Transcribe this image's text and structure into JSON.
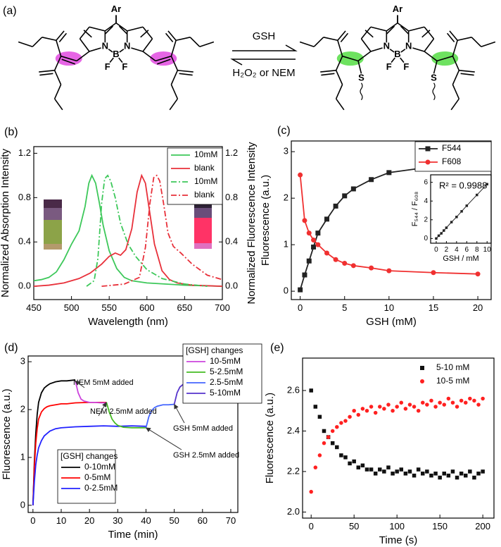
{
  "scheme": {
    "panel_label": "(a)",
    "forward": "GSH",
    "reverse": "H₂O₂ or NEM",
    "left_atoms": [
      "Ar",
      "N",
      "B",
      "N",
      "F",
      "F"
    ],
    "right_atoms": [
      "Ar",
      "N",
      "B",
      "N",
      "F",
      "F",
      "S",
      "S"
    ]
  },
  "chart_data": [
    {
      "type": "line",
      "panel_label": "(b)",
      "x_label": "Wavelength (nm)",
      "y_label": "Normalized Absorption Intensity",
      "y2_label": "Normalized Fluorescence Intensity",
      "xlim": [
        450,
        700
      ],
      "xticks": [
        450,
        500,
        550,
        600,
        650,
        700
      ],
      "ylim": [
        -0.12,
        1.26
      ],
      "yticks": [
        {
          "value": 0,
          "label": "0.0"
        },
        {
          "value": 0.4,
          "label": "0.4"
        },
        {
          "value": 0.8,
          "label": "0.8"
        },
        {
          "value": 1.2,
          "label": "1.2"
        }
      ],
      "y2lim": [
        -0.12,
        1.26
      ],
      "y2ticks": [
        {
          "value": 0,
          "label": "0.0"
        },
        {
          "value": 0.4,
          "label": "0.4"
        },
        {
          "value": 0.8,
          "label": "0.8"
        },
        {
          "value": 1.2,
          "label": "1.2"
        }
      ],
      "legend": "upper right",
      "series": [
        {
          "name": "10mM",
          "color": "#3dc85a",
          "style": "solid",
          "x": [
            450,
            460,
            470,
            480,
            490,
            500,
            510,
            518,
            523,
            527,
            532,
            537,
            542,
            550,
            560,
            570,
            580,
            600,
            650,
            700
          ],
          "values": [
            0.05,
            0.06,
            0.08,
            0.13,
            0.24,
            0.38,
            0.5,
            0.72,
            0.93,
            1.0,
            0.93,
            0.75,
            0.55,
            0.32,
            0.16,
            0.08,
            0.05,
            0.03,
            0.01,
            0.0
          ]
        },
        {
          "name": "blank",
          "color": "#e8303a",
          "style": "solid",
          "x": [
            450,
            470,
            490,
            510,
            525,
            540,
            550,
            558,
            565,
            572,
            580,
            587,
            593,
            598,
            603,
            610,
            620,
            630,
            640,
            660,
            700
          ],
          "values": [
            0.0,
            0.01,
            0.03,
            0.07,
            0.12,
            0.2,
            0.27,
            0.3,
            0.28,
            0.33,
            0.52,
            0.85,
            1.0,
            0.93,
            0.7,
            0.38,
            0.14,
            0.06,
            0.03,
            0.01,
            0.0
          ]
        },
        {
          "name": "10mM",
          "color": "#3dc85a",
          "style": "dashdot",
          "axis": "y2",
          "x": [
            520,
            530,
            535,
            540,
            544,
            548,
            552,
            558,
            565,
            575,
            585,
            600,
            620,
            650,
            680
          ],
          "values": [
            0.0,
            0.05,
            0.25,
            0.75,
            0.97,
            1.0,
            0.95,
            0.8,
            0.57,
            0.38,
            0.27,
            0.15,
            0.07,
            0.02,
            0.0
          ]
        },
        {
          "name": "blank",
          "color": "#e8303a",
          "style": "dashdot",
          "axis": "y2",
          "x": [
            540,
            570,
            590,
            598,
            604,
            609,
            613,
            617,
            622,
            628,
            635,
            645,
            660,
            680,
            700
          ],
          "values": [
            0.0,
            0.02,
            0.08,
            0.35,
            0.75,
            0.98,
            1.0,
            0.95,
            0.75,
            0.48,
            0.36,
            0.3,
            0.2,
            0.1,
            0.06
          ]
        }
      ]
    },
    {
      "type": "line",
      "panel_label": "(c)",
      "x_label": "GSH (mM)",
      "y_label": "Fluorescence  (a.u.)",
      "xlim": [
        -1,
        21.5
      ],
      "xticks": [
        0,
        5,
        10,
        15,
        20
      ],
      "ylim": [
        -0.18,
        3.23
      ],
      "yticks": [
        0,
        1,
        2,
        3
      ],
      "legend": "upper right",
      "x": [
        0,
        0.5,
        1,
        1.5,
        2,
        3,
        4,
        5,
        6,
        8,
        10,
        15,
        20
      ],
      "series": [
        {
          "name": "F544",
          "color": "#222222",
          "marker": "square",
          "values": [
            0.03,
            0.35,
            0.65,
            0.95,
            1.25,
            1.55,
            1.83,
            2.05,
            2.2,
            2.4,
            2.55,
            2.68,
            2.76
          ]
        },
        {
          "name": "F608",
          "color": "#f03030",
          "marker": "circle",
          "values": [
            2.5,
            1.52,
            1.25,
            1.1,
            1.0,
            0.82,
            0.68,
            0.6,
            0.55,
            0.5,
            0.44,
            0.4,
            0.37
          ]
        }
      ]
    },
    {
      "type": "line",
      "x_label": "GSH / mM",
      "y_label": "F₅₄₄ / F₆₀₈",
      "annotation": "R² = 0.9988",
      "xlim": [
        -1.1,
        10.8
      ],
      "xticks": [
        0,
        2,
        4,
        6,
        8,
        10
      ],
      "ylim": [
        -0.5,
        6.8
      ],
      "yticks": [
        0,
        2,
        4,
        6
      ],
      "x": [
        0,
        0.5,
        1,
        1.5,
        2,
        3,
        4,
        5,
        6,
        8,
        10
      ],
      "series": [
        {
          "color": "#222222",
          "marker": "square",
          "values": [
            0,
            0.3,
            0.55,
            0.85,
            1.15,
            1.75,
            2.3,
            2.9,
            3.5,
            4.65,
            5.8
          ]
        }
      ]
    },
    {
      "type": "line",
      "panel_label": "(d)",
      "x_label": "Time (min)",
      "y_label": "Fluorescence  (a.u.)",
      "xlim": [
        -1.7,
        72.5
      ],
      "xticks": [
        0,
        10,
        20,
        30,
        40,
        50,
        60,
        70
      ],
      "ylim": [
        -0.15,
        3.12
      ],
      "yticks": [
        0,
        1,
        2,
        3
      ],
      "legends": [
        {
          "loc": "upper right",
          "title": "[GSH] changes"
        },
        {
          "loc": "lower left",
          "title": "[GSH] changes"
        }
      ],
      "series": [
        {
          "name": "0-10mM",
          "color": "#000000",
          "legend": "lower left",
          "x": [
            0,
            0.5,
            1,
            1.5,
            2,
            3,
            4,
            5,
            6,
            8,
            10,
            12,
            15
          ],
          "values": [
            0,
            0.9,
            1.5,
            1.9,
            2.15,
            2.35,
            2.45,
            2.5,
            2.54,
            2.58,
            2.6,
            2.6,
            2.62
          ]
        },
        {
          "name": "0-5mM",
          "color": "#ff0000",
          "legend": "lower left",
          "x": [
            0,
            0.5,
            1,
            1.5,
            2,
            3,
            4,
            5,
            6,
            8,
            10,
            12,
            15,
            20,
            26
          ],
          "values": [
            0,
            0.8,
            1.3,
            1.6,
            1.8,
            1.95,
            2.02,
            2.06,
            2.08,
            2.1,
            2.12,
            2.12,
            2.14,
            2.15,
            2.15
          ]
        },
        {
          "name": "0-2.5mM",
          "color": "#2222ff",
          "legend": "lower left",
          "x": [
            0,
            0.5,
            1,
            1.5,
            2,
            3,
            4,
            5,
            6,
            8,
            10,
            15,
            20,
            25,
            30,
            35,
            40
          ],
          "values": [
            0,
            0.5,
            0.85,
            1.05,
            1.2,
            1.35,
            1.45,
            1.5,
            1.55,
            1.6,
            1.62,
            1.64,
            1.65,
            1.66,
            1.65,
            1.66,
            1.65
          ]
        },
        {
          "name": "10-5mM",
          "color": "#cc44dd",
          "legend": "upper right",
          "x": [
            15,
            16,
            17,
            18,
            20,
            22,
            24,
            26
          ],
          "values": [
            2.6,
            2.35,
            2.22,
            2.18,
            2.15,
            2.15,
            2.14,
            2.14
          ]
        },
        {
          "name": "5-2.5mM",
          "color": "#44bb22",
          "legend": "upper right",
          "x": [
            26,
            27,
            28,
            29,
            30,
            32,
            35,
            38,
            40
          ],
          "values": [
            2.15,
            1.95,
            1.8,
            1.72,
            1.67,
            1.63,
            1.62,
            1.62,
            1.62
          ]
        },
        {
          "name": "2.5-5mM",
          "color": "#4466ff",
          "legend": "upper right",
          "x": [
            40,
            41,
            42,
            43,
            44,
            46,
            48,
            50
          ],
          "values": [
            1.62,
            1.85,
            1.98,
            2.04,
            2.07,
            2.1,
            2.1,
            2.11
          ]
        },
        {
          "name": "5-10mM",
          "color": "#5533cc",
          "legend": "upper right",
          "x": [
            50,
            51,
            52,
            53,
            54,
            56,
            58,
            60
          ],
          "values": [
            2.11,
            2.35,
            2.47,
            2.52,
            2.55,
            2.57,
            2.58,
            2.58
          ]
        }
      ],
      "annotations": [
        {
          "text": "NEM 5mM added",
          "x": 15,
          "y": 2.6
        },
        {
          "text": "NEM 2.5mM added",
          "x": 26,
          "y": 2.15
        },
        {
          "text": "GSH 5mM added",
          "x": 50,
          "y": 2.11
        },
        {
          "text": "GSH 2.5mM added",
          "x": 40,
          "y": 1.62
        }
      ]
    },
    {
      "type": "scatter",
      "panel_label": "(e)",
      "x_label": "Time (s)",
      "y_label": "Fluorescence (a.u.)",
      "xlim": [
        -10,
        213
      ],
      "xticks": [
        0,
        50,
        100,
        150,
        200
      ],
      "ylim": [
        1.97,
        2.76
      ],
      "yticks": [
        {
          "value": 2.0,
          "label": "2.0"
        },
        {
          "value": 2.2,
          "label": "2.2"
        },
        {
          "value": 2.4,
          "label": "2.4"
        },
        {
          "value": 2.6,
          "label": "2.6"
        }
      ],
      "legend": "upper right",
      "x": [
        0,
        5,
        10,
        15,
        20,
        25,
        30,
        35,
        40,
        45,
        50,
        55,
        60,
        65,
        70,
        75,
        80,
        85,
        90,
        95,
        100,
        105,
        110,
        115,
        120,
        125,
        130,
        135,
        140,
        145,
        150,
        155,
        160,
        165,
        170,
        175,
        180,
        185,
        190,
        195,
        200
      ],
      "series": [
        {
          "name": "5-10 mM",
          "color": "#111111",
          "marker": "square",
          "values": [
            2.6,
            2.52,
            2.47,
            2.4,
            2.37,
            2.34,
            2.32,
            2.28,
            2.27,
            2.24,
            2.25,
            2.22,
            2.23,
            2.21,
            2.21,
            2.19,
            2.21,
            2.2,
            2.22,
            2.19,
            2.2,
            2.21,
            2.19,
            2.2,
            2.18,
            2.21,
            2.19,
            2.2,
            2.18,
            2.19,
            2.17,
            2.19,
            2.18,
            2.2,
            2.17,
            2.19,
            2.18,
            2.2,
            2.17,
            2.19,
            2.2
          ]
        },
        {
          "name": "10-5 mM",
          "color": "#ff2020",
          "marker": "circle",
          "values": [
            2.1,
            2.22,
            2.28,
            2.34,
            2.37,
            2.4,
            2.42,
            2.44,
            2.45,
            2.47,
            2.5,
            2.48,
            2.51,
            2.5,
            2.52,
            2.49,
            2.52,
            2.51,
            2.53,
            2.5,
            2.52,
            2.54,
            2.51,
            2.53,
            2.52,
            2.5,
            2.54,
            2.53,
            2.55,
            2.52,
            2.54,
            2.53,
            2.56,
            2.54,
            2.52,
            2.55,
            2.54,
            2.56,
            2.55,
            2.53,
            2.56
          ]
        }
      ]
    }
  ]
}
